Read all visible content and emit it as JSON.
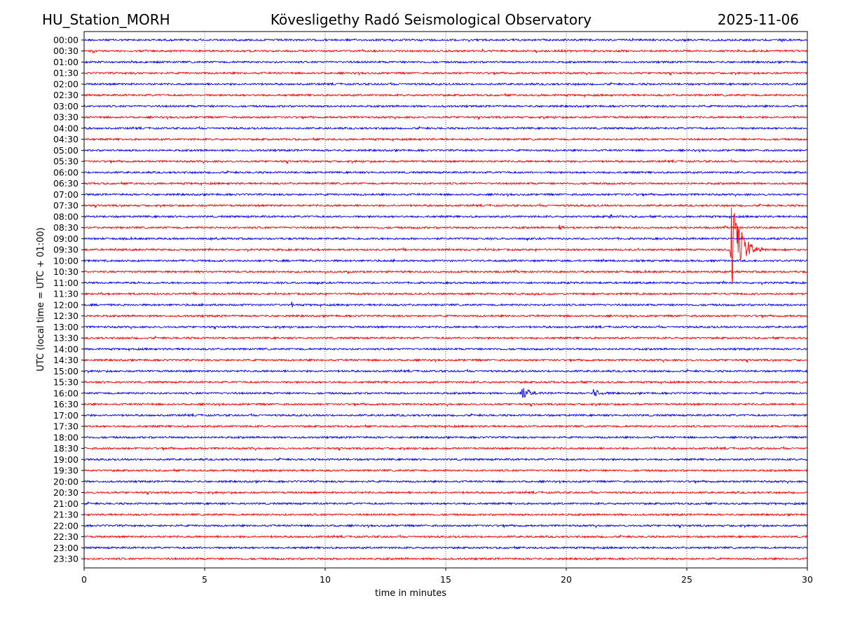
{
  "header": {
    "station": "HU_Station_MORH",
    "title": "Kövesligethy Radó Seismological Observatory",
    "date": "2025-11-06"
  },
  "chart_data": {
    "type": "line",
    "subtype": "helicorder",
    "xlabel": "time in minutes",
    "ylabel": "UTC (local time = UTC + 01:00)",
    "xlim": [
      0,
      30
    ],
    "x_ticks": [
      0,
      5,
      10,
      15,
      20,
      25,
      30
    ],
    "x_grid": [
      5,
      10,
      15,
      20,
      25
    ],
    "grid": "vertical dotted",
    "row_labels": [
      "00:00",
      "00:30",
      "01:00",
      "01:30",
      "02:00",
      "02:30",
      "03:00",
      "03:30",
      "04:00",
      "04:30",
      "05:00",
      "05:30",
      "06:00",
      "06:30",
      "07:00",
      "07:30",
      "08:00",
      "08:30",
      "09:00",
      "09:30",
      "10:00",
      "10:30",
      "11:00",
      "11:30",
      "12:00",
      "12:30",
      "13:00",
      "13:30",
      "14:00",
      "14:30",
      "15:00",
      "15:30",
      "16:00",
      "16:30",
      "17:00",
      "17:30",
      "18:00",
      "18:30",
      "19:00",
      "19:30",
      "20:00",
      "20:30",
      "21:00",
      "21:30",
      "22:00",
      "22:30",
      "23:00",
      "23:30"
    ],
    "trace_colors": [
      "#0000ff",
      "#ff0000"
    ],
    "events": [
      {
        "row": "09:30",
        "start_min": 26.8,
        "end_min": 28.3,
        "peak_up_rows": 2.9,
        "peak_down_rows": 2.1
      },
      {
        "row": "16:00",
        "start_min": 18.1,
        "end_min": 19.3,
        "peak_up_rows": 0.4,
        "peak_down_rows": 0.4
      },
      {
        "row": "16:00",
        "start_min": 21.1,
        "end_min": 21.9,
        "peak_up_rows": 0.3,
        "peak_down_rows": 0.3
      },
      {
        "row": "08:30",
        "start_min": 19.7,
        "end_min": 20.2,
        "peak_up_rows": 0.15,
        "peak_down_rows": 0.15
      },
      {
        "row": "08:00",
        "start_min": 21.8,
        "end_min": 22.1,
        "peak_up_rows": 0.2,
        "peak_down_rows": 0.2
      },
      {
        "row": "12:00",
        "start_min": 8.6,
        "end_min": 8.75,
        "peak_up_rows": 0.25,
        "peak_down_rows": 0.2
      }
    ]
  }
}
